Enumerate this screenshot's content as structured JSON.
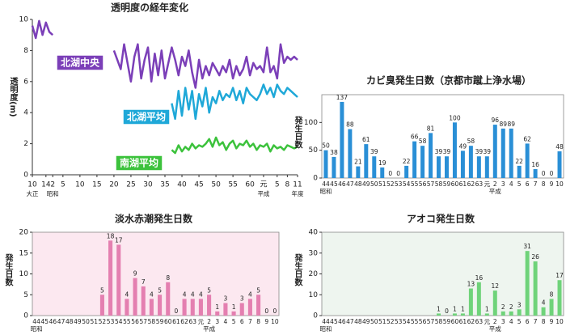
{
  "chart_data": [
    {
      "type": "line",
      "title": "透明度の経年変化",
      "ylabel": "透明度(m)",
      "x_label": "年度",
      "x": [
        1921,
        1922,
        1923,
        1924,
        1925,
        1926,
        1927,
        1928,
        1929,
        1930,
        1931,
        1932,
        1933,
        1934,
        1935,
        1936,
        1937,
        1938,
        1939,
        1940,
        1941,
        1942,
        1943,
        1944,
        1945,
        1946,
        1947,
        1948,
        1949,
        1950,
        1951,
        1952,
        1953,
        1954,
        1955,
        1956,
        1957,
        1958,
        1959,
        1960,
        1961,
        1962,
        1963,
        1964,
        1965,
        1966,
        1967,
        1968,
        1969,
        1970,
        1971,
        1972,
        1973,
        1974,
        1975,
        1976,
        1977,
        1978,
        1979,
        1980,
        1981,
        1982,
        1983,
        1984,
        1985,
        1986,
        1987,
        1988,
        1989,
        1990,
        1991,
        1992,
        1993,
        1994,
        1995,
        1996,
        1997,
        1998,
        1999
      ],
      "xlim": [
        1921,
        1999
      ],
      "xticks": [
        {
          "value": 1921,
          "label": "10"
        },
        {
          "value": 1925,
          "label": "14"
        },
        {
          "value": 1927,
          "label": "2"
        },
        {
          "value": 1930,
          "label": "5"
        },
        {
          "value": 1935,
          "label": "10"
        },
        {
          "value": 1940,
          "label": "15"
        },
        {
          "value": 1945,
          "label": "20"
        },
        {
          "value": 1950,
          "label": "25"
        },
        {
          "value": 1955,
          "label": "30"
        },
        {
          "value": 1960,
          "label": "35"
        },
        {
          "value": 1965,
          "label": "40"
        },
        {
          "value": 1970,
          "label": "45"
        },
        {
          "value": 1975,
          "label": "50"
        },
        {
          "value": 1980,
          "label": "55"
        },
        {
          "value": 1985,
          "label": "60"
        },
        {
          "value": 1989,
          "label": "元"
        },
        {
          "value": 1993,
          "label": "5"
        },
        {
          "value": 1996,
          "label": "8"
        },
        {
          "value": 1999,
          "label": "11"
        }
      ],
      "era_labels": [
        {
          "value": 1921,
          "label": "大正"
        },
        {
          "value": 1927,
          "label": "昭和"
        },
        {
          "value": 1989,
          "label": "平成"
        }
      ],
      "ylim": [
        0,
        10
      ],
      "yticks": [
        0,
        2,
        4,
        6,
        8,
        10
      ],
      "series": [
        {
          "name": "北湖中央",
          "color": "#7b3fb8",
          "values": [
            9.6,
            8.8,
            9.9,
            9.0,
            9.8,
            9.2,
            9.0,
            null,
            null,
            null,
            null,
            null,
            null,
            null,
            null,
            null,
            null,
            null,
            null,
            null,
            null,
            null,
            null,
            null,
            8.0,
            7.4,
            6.8,
            8.4,
            7.2,
            6.0,
            7.6,
            8.4,
            6.2,
            7.4,
            8.2,
            6.0,
            7.8,
            6.4,
            8.0,
            6.2,
            7.2,
            8.2,
            7.4,
            6.4,
            7.6,
            7.0,
            8.0,
            6.6,
            5.6,
            7.4,
            6.2,
            7.0,
            6.4,
            7.2,
            6.8,
            6.4,
            7.0,
            6.6,
            7.4,
            6.2,
            7.0,
            6.4,
            6.8,
            7.6,
            6.4,
            7.2,
            6.8,
            7.0,
            6.6,
            8.2,
            6.6,
            7.0,
            6.2,
            8.4,
            7.2,
            7.6,
            7.4,
            7.6,
            7.4
          ]
        },
        {
          "name": "北湖平均",
          "color": "#1fa8d8",
          "values": [
            null,
            null,
            null,
            null,
            null,
            null,
            null,
            null,
            null,
            null,
            null,
            null,
            null,
            null,
            null,
            null,
            null,
            null,
            null,
            null,
            null,
            null,
            null,
            null,
            null,
            null,
            null,
            null,
            null,
            null,
            null,
            null,
            null,
            null,
            null,
            null,
            null,
            null,
            null,
            null,
            null,
            4.6,
            3.6,
            5.4,
            3.8,
            5.6,
            4.2,
            5.4,
            3.6,
            5.2,
            4.4,
            5.6,
            4.0,
            5.0,
            4.6,
            5.4,
            4.8,
            5.2,
            5.0,
            5.6,
            4.8,
            5.4,
            4.6,
            5.6,
            5.2,
            5.0,
            4.8,
            5.2,
            5.8,
            5.2,
            5.6,
            5.0,
            5.8,
            5.4,
            5.2,
            5.6,
            5.4,
            5.2,
            5.0
          ]
        },
        {
          "name": "南湖平均",
          "color": "#3cc23c",
          "values": [
            null,
            null,
            null,
            null,
            null,
            null,
            null,
            null,
            null,
            null,
            null,
            null,
            null,
            null,
            null,
            null,
            null,
            null,
            null,
            null,
            null,
            null,
            null,
            null,
            null,
            null,
            null,
            null,
            null,
            null,
            null,
            null,
            null,
            null,
            null,
            null,
            null,
            null,
            null,
            null,
            null,
            1.6,
            1.4,
            1.9,
            1.5,
            1.8,
            1.6,
            2.0,
            1.7,
            1.9,
            1.8,
            2.0,
            2.3,
            1.8,
            2.4,
            1.9,
            2.1,
            1.6,
            2.0,
            2.2,
            1.7,
            2.0,
            1.9,
            2.2,
            1.8,
            2.0,
            1.6,
            1.9,
            1.8,
            2.0,
            1.5,
            1.9,
            1.7,
            1.8,
            1.6,
            1.9,
            1.8,
            1.7,
            1.8
          ]
        }
      ]
    },
    {
      "type": "bar",
      "title": "カビ臭発生日数（京都市蹴上浄水場）",
      "ylabel": "発生日数",
      "color": "#2a8fd6",
      "background": "#ffffff",
      "categories": [
        "44",
        "45",
        "46",
        "47",
        "48",
        "49",
        "50",
        "51",
        "52",
        "53",
        "54",
        "55",
        "56",
        "57",
        "58",
        "59",
        "60",
        "61",
        "62",
        "63",
        "元",
        "2",
        "3",
        "4",
        "5",
        "6",
        "7",
        "8",
        "9",
        "10"
      ],
      "values": [
        50,
        38,
        137,
        88,
        21,
        61,
        39,
        19,
        0,
        0,
        22,
        66,
        58,
        81,
        39,
        39,
        100,
        49,
        58,
        39,
        39,
        96,
        89,
        89,
        22,
        62,
        16,
        0,
        0,
        48
      ],
      "era_labels": [
        {
          "index": 0,
          "label": "昭和"
        },
        {
          "index": 21,
          "label": "平成"
        }
      ],
      "ylim": [
        0,
        150
      ],
      "yticks": [
        0,
        50,
        100
      ]
    },
    {
      "type": "bar",
      "title": "淡水赤潮発生日数",
      "ylabel": "発生日数",
      "color": "#e47fb0",
      "background": "#fce8f0",
      "categories": [
        "44",
        "45",
        "46",
        "47",
        "48",
        "49",
        "50",
        "51",
        "52",
        "53",
        "54",
        "55",
        "56",
        "57",
        "58",
        "59",
        "60",
        "61",
        "62",
        "63",
        "元",
        "2",
        "3",
        "4",
        "5",
        "6",
        "7",
        "8",
        "9",
        "10"
      ],
      "values": [
        null,
        null,
        null,
        null,
        null,
        null,
        null,
        null,
        5,
        18,
        17,
        4,
        9,
        7,
        4,
        5,
        8,
        0,
        4,
        4,
        4,
        5,
        1,
        3,
        1,
        3,
        4,
        5,
        0,
        0
      ],
      "era_labels": [
        {
          "index": 0,
          "label": "昭和"
        },
        {
          "index": 21,
          "label": "平成"
        }
      ],
      "ylim": [
        0,
        20
      ],
      "yticks": [
        0,
        5,
        10,
        15,
        20
      ]
    },
    {
      "type": "bar",
      "title": "アオコ発生日数",
      "ylabel": "発生日数",
      "color": "#6fd37a",
      "background": "#eef5ef",
      "categories": [
        "44",
        "45",
        "46",
        "47",
        "48",
        "49",
        "50",
        "51",
        "52",
        "53",
        "54",
        "55",
        "56",
        "57",
        "58",
        "59",
        "60",
        "61",
        "62",
        "63",
        "元",
        "2",
        "3",
        "4",
        "5",
        "6",
        "7",
        "8",
        "9",
        "10"
      ],
      "values": [
        null,
        null,
        null,
        null,
        null,
        null,
        null,
        null,
        null,
        null,
        null,
        null,
        null,
        null,
        1,
        0,
        1,
        1,
        13,
        16,
        1,
        12,
        2,
        2,
        3,
        31,
        26,
        4,
        8,
        17
      ],
      "era_labels": [
        {
          "index": 0,
          "label": "昭和"
        },
        {
          "index": 21,
          "label": "平成"
        }
      ],
      "ylim": [
        0,
        40
      ],
      "yticks": [
        0,
        10,
        20,
        30,
        40
      ]
    }
  ]
}
